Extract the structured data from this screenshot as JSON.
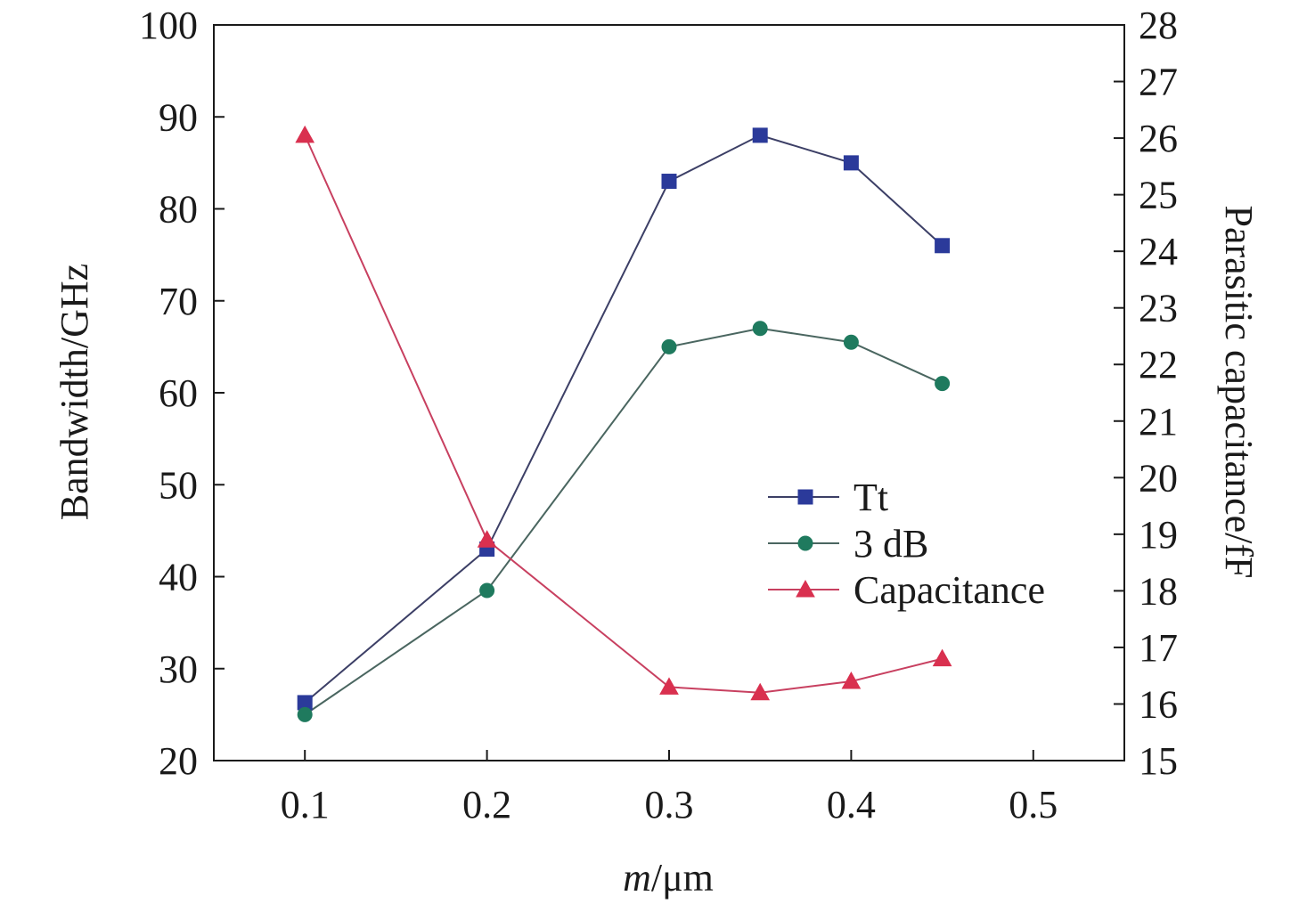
{
  "chart_data": {
    "type": "line",
    "x": [
      0.1,
      0.2,
      0.3,
      0.35,
      0.4,
      0.45
    ],
    "xlabel_italic": "m",
    "xlabel_rest": "/μm",
    "ylabel": "Bandwidth/GHz",
    "y2label": "Parasitic capacitance/fF",
    "xlim": [
      0.05,
      0.55
    ],
    "ylim": [
      20,
      100
    ],
    "y2lim": [
      15,
      28
    ],
    "xticks": [
      0.1,
      0.2,
      0.3,
      0.4,
      0.5
    ],
    "xtick_labels": [
      "0.1",
      "0.2",
      "0.3",
      "0.4",
      "0.5"
    ],
    "yticks": [
      20,
      30,
      40,
      50,
      60,
      70,
      80,
      90,
      100
    ],
    "ytick_labels": [
      "20",
      "30",
      "40",
      "50",
      "60",
      "70",
      "80",
      "90",
      "100"
    ],
    "y2ticks": [
      15,
      16,
      17,
      18,
      19,
      20,
      21,
      22,
      23,
      24,
      25,
      26,
      27,
      28
    ],
    "y2tick_labels": [
      "15",
      "16",
      "17",
      "18",
      "19",
      "20",
      "21",
      "22",
      "23",
      "24",
      "25",
      "26",
      "27",
      "28"
    ],
    "grid": false,
    "legend_position": "center-right",
    "series": [
      {
        "name": "Tt",
        "axis": "left",
        "marker": "square",
        "color": "#2b3a9a",
        "line_color": "#3c3f66",
        "values": [
          26.3,
          43.0,
          83.0,
          88.0,
          85.0,
          76.0
        ]
      },
      {
        "name": "3 dB",
        "axis": "left",
        "marker": "circle",
        "color": "#1f7a5e",
        "line_color": "#4a6660",
        "values": [
          25.0,
          38.5,
          65.0,
          67.0,
          65.5,
          61.0
        ]
      },
      {
        "name": "Capacitance",
        "axis": "right",
        "marker": "triangle",
        "color": "#d9304f",
        "line_color": "#c84060",
        "values": [
          26.05,
          18.9,
          16.3,
          16.2,
          16.4,
          16.8
        ]
      }
    ]
  }
}
